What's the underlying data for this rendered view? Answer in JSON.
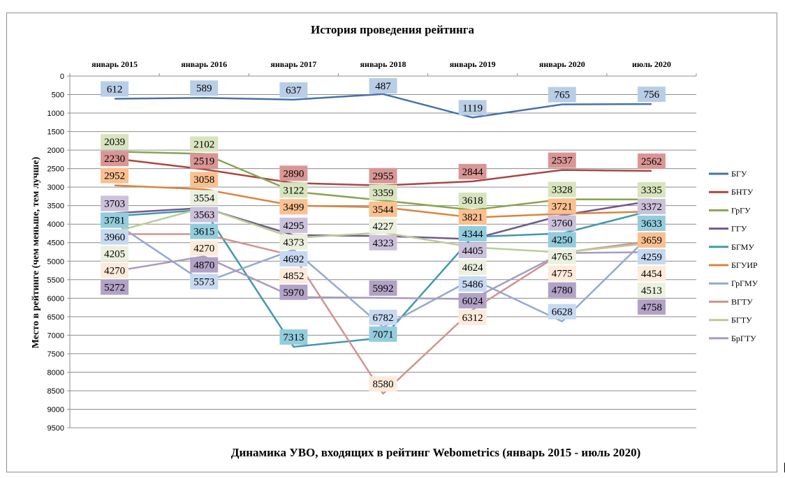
{
  "chart_data": {
    "type": "line",
    "title": "История проведения рейтинга",
    "subtitle": "Динамика УВО, входящих в рейтинг Webometrics (январь 2015 -  июль 2020)",
    "ylabel": "Место в рейтинге (чем меньше, тем лучше)",
    "xlabel": "",
    "categories": [
      "январь 2015",
      "январь 2016",
      "январь 2017",
      "январь 2018",
      "январь 2019",
      "январь 2020",
      "июль 2020"
    ],
    "ylim": [
      0,
      9500
    ],
    "y_inverted": true,
    "y_ticks": [
      0,
      500,
      1000,
      1500,
      2000,
      2500,
      3000,
      3500,
      4000,
      4500,
      5000,
      5500,
      6000,
      6500,
      7000,
      7500,
      8000,
      8500,
      9000,
      9500
    ],
    "x_axis_position": "top",
    "grid": true,
    "legend_position": "right",
    "data_labels": true,
    "series": [
      {
        "name": "БГУ",
        "color": "#4672a8",
        "label_bg": "#b9cde6",
        "values": [
          612,
          589,
          637,
          487,
          1119,
          765,
          756
        ]
      },
      {
        "name": "БНТУ",
        "color": "#aa4643",
        "label_bg": "#d99694",
        "values": [
          2230,
          2519,
          2890,
          2955,
          2844,
          2537,
          2562
        ]
      },
      {
        "name": "ГрГУ",
        "color": "#89a54e",
        "label_bg": "#d7e4bd",
        "values": [
          2039,
          2102,
          3122,
          3359,
          3618,
          3328,
          3335
        ]
      },
      {
        "name": "ГГУ",
        "color": "#71588f",
        "label_bg": "#ccc1da",
        "values": [
          3703,
          3563,
          4295,
          4323,
          4405,
          3760,
          3372
        ]
      },
      {
        "name": "БГМУ",
        "color": "#4198af",
        "label_bg": "#93cddd",
        "values": [
          3781,
          3615,
          7313,
          7071,
          4344,
          4250,
          3633
        ]
      },
      {
        "name": "БГУИР",
        "color": "#db843d",
        "label_bg": "#fac090",
        "values": [
          2952,
          3058,
          3499,
          3544,
          3821,
          3721,
          3659
        ]
      },
      {
        "name": "ГрГМУ",
        "color": "#93a9cf",
        "label_bg": "#c6d9f1",
        "values": [
          3960,
          5573,
          4692,
          6782,
          5486,
          6628,
          4259
        ]
      },
      {
        "name": "ВГТУ",
        "color": "#d19392",
        "label_bg": "#fdeada",
        "values": [
          4270,
          4270,
          4852,
          8580,
          6312,
          4775,
          4454
        ]
      },
      {
        "name": "БГТУ",
        "color": "#b9cd96",
        "label_bg": "#ebf1de",
        "values": [
          4205,
          3554,
          4373,
          4227,
          4624,
          4765,
          4513
        ]
      },
      {
        "name": "БрГТУ",
        "color": "#a99bbd",
        "label_bg": "#b3a2c7",
        "values": [
          5272,
          4870,
          5970,
          5992,
          6024,
          4780,
          4758
        ]
      }
    ]
  }
}
